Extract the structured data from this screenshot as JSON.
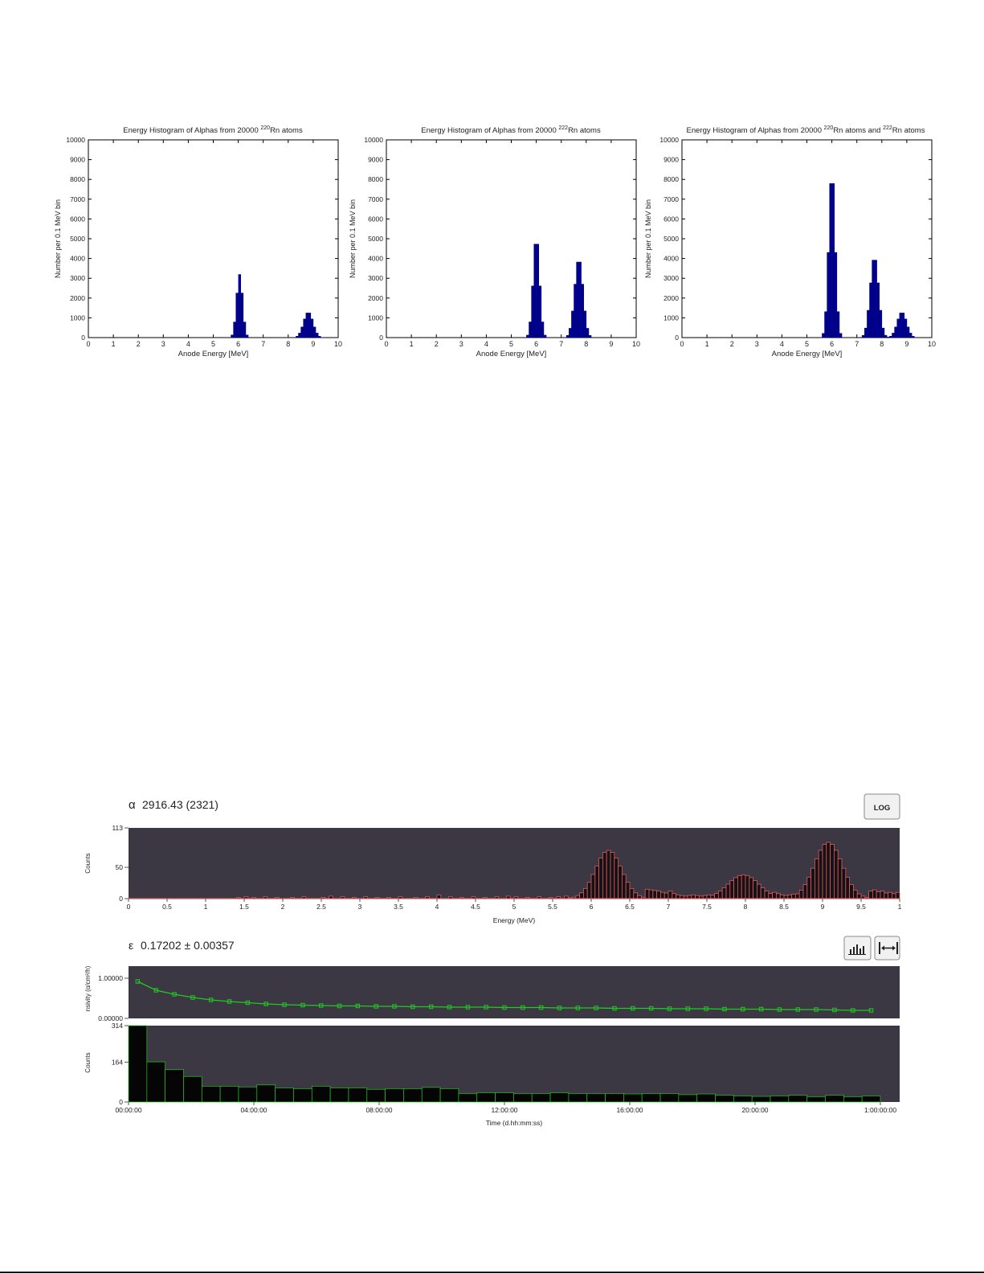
{
  "matlab": {
    "charts": [
      {
        "title_prefix": "Energy Histogram of Alphas from 20000 ",
        "iso_a": "220",
        "title_mid": "Rn atoms",
        "iso_b": "",
        "title_end": "",
        "peaks": [
          {
            "mu": 6.05,
            "sigma": 0.12,
            "peak": 3200
          },
          {
            "mu": 8.8,
            "sigma": 0.19,
            "peak": 1300
          }
        ]
      },
      {
        "title_prefix": "Energy Histogram of Alphas from 20000 ",
        "iso_a": "222",
        "title_mid": "Rn atoms",
        "iso_b": "",
        "title_end": "",
        "peaks": [
          {
            "mu": 6.0,
            "sigma": 0.13,
            "peak": 5100
          },
          {
            "mu": 7.7,
            "sigma": 0.17,
            "peak": 4000
          }
        ]
      },
      {
        "title_prefix": "Energy Histogram of Alphas from 20000 ",
        "iso_a": "220",
        "title_mid": "Rn atoms and ",
        "iso_b": "222",
        "title_end": "Rn atoms",
        "peaks": [
          {
            "mu": 6.0,
            "sigma": 0.13,
            "peak": 8400
          },
          {
            "mu": 7.7,
            "sigma": 0.17,
            "peak": 4100
          },
          {
            "mu": 8.8,
            "sigma": 0.19,
            "peak": 1300
          }
        ]
      }
    ],
    "xlabel": "Anode Energy [MeV]",
    "ylabel": "Number per 0.1 MeV bin",
    "x_ticks": [
      "0",
      "1",
      "2",
      "3",
      "4",
      "5",
      "6",
      "7",
      "8",
      "9",
      "10"
    ],
    "y_ticks": [
      "0",
      "1000",
      "2000",
      "3000",
      "4000",
      "5000",
      "6000",
      "7000",
      "8000",
      "9000",
      "10000"
    ]
  },
  "panel": {
    "alpha_symbol": "α",
    "alpha_value": "2916.43 (2321)",
    "log_button": "LOG",
    "energy_ylabel": "Counts",
    "energy_xlabel": "Energy (MeV)",
    "energy_y_ticks": [
      "0",
      "50",
      "113"
    ],
    "energy_x_ticks": [
      "0",
      "0.5",
      "1",
      "1.5",
      "2",
      "2.5",
      "3",
      "3.5",
      "4",
      "4.5",
      "5",
      "5.5",
      "6",
      "6.5",
      "7",
      "7.5",
      "8",
      "8.5",
      "9",
      "9.5",
      "1"
    ],
    "eps_symbol": "ε",
    "eps_value": "0.17202 ± 0.00357",
    "act_ylabel": "nsivity (α/cm²/h)",
    "act_y_ticks": [
      "0.00000",
      "1.00000"
    ],
    "counts_ylabel": "Counts",
    "counts_y_ticks": [
      "0",
      "164",
      "314"
    ],
    "time_x_ticks": [
      "00:00:00",
      "04:00:00",
      "08:00:00",
      "12:00:00",
      "16:00:00",
      "20:00:00",
      "1:00:00:00"
    ],
    "time_xlabel": "Time (d.hh:mm:ss)",
    "colors": {
      "plot_bg": "#3b3844",
      "energy_line": "#e05a5a",
      "green": "#22c922",
      "matlab_bar": "#00008b"
    }
  },
  "chart_data": [
    {
      "type": "bar",
      "title": "Energy Histogram of Alphas from 20000 220Rn atoms",
      "xlabel": "Anode Energy [MeV]",
      "ylabel": "Number per 0.1 MeV bin",
      "xlim": [
        0,
        10
      ],
      "ylim": [
        0,
        10000
      ],
      "bin_width": 0.1,
      "peaks": [
        {
          "center": 6.05,
          "max": 3200
        },
        {
          "center": 8.8,
          "max": 1300
        }
      ]
    },
    {
      "type": "bar",
      "title": "Energy Histogram of Alphas from 20000 222Rn atoms",
      "xlabel": "Anode Energy [MeV]",
      "ylabel": "Number per 0.1 MeV bin",
      "xlim": [
        0,
        10
      ],
      "ylim": [
        0,
        10000
      ],
      "bin_width": 0.1,
      "peaks": [
        {
          "center": 6.0,
          "max": 5100
        },
        {
          "center": 7.7,
          "max": 4000
        }
      ]
    },
    {
      "type": "bar",
      "title": "Energy Histogram of Alphas from 20000 220Rn atoms and 222Rn atoms",
      "xlabel": "Anode Energy [MeV]",
      "ylabel": "Number per 0.1 MeV bin",
      "xlim": [
        0,
        10
      ],
      "ylim": [
        0,
        10000
      ],
      "bin_width": 0.1,
      "peaks": [
        {
          "center": 6.0,
          "max": 8400
        },
        {
          "center": 7.7,
          "max": 4100
        },
        {
          "center": 8.8,
          "max": 1300
        }
      ]
    },
    {
      "type": "bar",
      "xlabel": "Energy (MeV)",
      "ylabel": "Counts",
      "xlim": [
        0,
        10
      ],
      "ylim": [
        0,
        113
      ],
      "bin_width": 0.05,
      "peaks": [
        {
          "center": 6.2,
          "max": 77
        },
        {
          "center": 7.95,
          "max": 38
        },
        {
          "center": 9.05,
          "max": 90
        }
      ],
      "background_bins": [
        {
          "x": 1.4,
          "v": 2
        },
        {
          "x": 1.5,
          "v": 3
        },
        {
          "x": 1.6,
          "v": 2
        },
        {
          "x": 1.75,
          "v": 3
        },
        {
          "x": 1.9,
          "v": 2
        },
        {
          "x": 2.1,
          "v": 2
        },
        {
          "x": 2.25,
          "v": 3
        },
        {
          "x": 2.5,
          "v": 2
        },
        {
          "x": 2.6,
          "v": 4
        },
        {
          "x": 2.75,
          "v": 3
        },
        {
          "x": 2.9,
          "v": 2
        },
        {
          "x": 3.05,
          "v": 3
        },
        {
          "x": 3.2,
          "v": 2
        },
        {
          "x": 3.35,
          "v": 2
        },
        {
          "x": 3.5,
          "v": 3
        },
        {
          "x": 3.7,
          "v": 2
        },
        {
          "x": 3.85,
          "v": 3
        },
        {
          "x": 4.0,
          "v": 6
        },
        {
          "x": 4.15,
          "v": 3
        },
        {
          "x": 4.3,
          "v": 2
        },
        {
          "x": 4.45,
          "v": 3
        },
        {
          "x": 4.6,
          "v": 2
        },
        {
          "x": 4.75,
          "v": 3
        },
        {
          "x": 4.9,
          "v": 4
        },
        {
          "x": 5.0,
          "v": 3
        },
        {
          "x": 5.15,
          "v": 2
        },
        {
          "x": 5.3,
          "v": 3
        },
        {
          "x": 5.45,
          "v": 2
        },
        {
          "x": 5.55,
          "v": 3
        },
        {
          "x": 5.65,
          "v": 4
        },
        {
          "x": 6.7,
          "v": 15
        },
        {
          "x": 6.75,
          "v": 14
        },
        {
          "x": 6.8,
          "v": 13
        },
        {
          "x": 6.85,
          "v": 12
        },
        {
          "x": 6.9,
          "v": 10
        },
        {
          "x": 6.95,
          "v": 9
        },
        {
          "x": 7.0,
          "v": 12
        },
        {
          "x": 7.05,
          "v": 8
        },
        {
          "x": 7.1,
          "v": 6
        },
        {
          "x": 7.15,
          "v": 5
        },
        {
          "x": 7.2,
          "v": 4
        },
        {
          "x": 7.25,
          "v": 5
        },
        {
          "x": 7.3,
          "v": 6
        },
        {
          "x": 7.35,
          "v": 5
        },
        {
          "x": 7.4,
          "v": 4
        },
        {
          "x": 7.45,
          "v": 5
        },
        {
          "x": 7.5,
          "v": 6
        },
        {
          "x": 7.55,
          "v": 5
        },
        {
          "x": 8.35,
          "v": 10
        },
        {
          "x": 8.4,
          "v": 8
        },
        {
          "x": 8.45,
          "v": 6
        },
        {
          "x": 8.5,
          "v": 5
        },
        {
          "x": 8.55,
          "v": 6
        },
        {
          "x": 8.6,
          "v": 7
        },
        {
          "x": 9.6,
          "v": 12
        },
        {
          "x": 9.65,
          "v": 14
        },
        {
          "x": 9.7,
          "v": 11
        },
        {
          "x": 9.75,
          "v": 12
        },
        {
          "x": 9.8,
          "v": 9
        },
        {
          "x": 9.85,
          "v": 10
        },
        {
          "x": 9.9,
          "v": 8
        },
        {
          "x": 9.95,
          "v": 10
        }
      ]
    },
    {
      "type": "line",
      "xlabel": "",
      "ylabel": "nsivity (α/cm²/h)",
      "ylim": [
        0,
        1.3
      ],
      "x_hours": [
        0.5,
        1.5,
        2.5,
        3.5,
        4.5,
        5.5,
        6.5,
        7.5,
        8.5,
        9.5,
        10.5,
        11.5,
        12.5,
        13.5,
        14.5,
        15.5,
        16.5,
        17.5,
        18.5,
        19.5,
        20.5,
        21.5,
        22.5,
        23.5,
        24.5,
        25.5,
        26.5,
        27.5,
        28.5,
        29.5,
        30.5,
        31.5,
        32.5,
        33.5,
        34.5,
        35.5,
        36.5,
        37.5,
        38.5,
        39.5,
        40.5
      ],
      "values": [
        0.92,
        0.7,
        0.6,
        0.52,
        0.46,
        0.42,
        0.39,
        0.36,
        0.34,
        0.33,
        0.32,
        0.31,
        0.31,
        0.3,
        0.3,
        0.29,
        0.29,
        0.28,
        0.28,
        0.28,
        0.27,
        0.27,
        0.27,
        0.26,
        0.26,
        0.26,
        0.25,
        0.25,
        0.25,
        0.24,
        0.24,
        0.24,
        0.23,
        0.23,
        0.23,
        0.22,
        0.22,
        0.22,
        0.21,
        0.2,
        0.2
      ]
    },
    {
      "type": "bar",
      "xlabel": "Time (d.hh:mm:ss)",
      "ylabel": "Counts",
      "ylim": [
        0,
        314
      ],
      "bin_hours": 1,
      "values": [
        314,
        165,
        133,
        105,
        65,
        65,
        62,
        70,
        58,
        55,
        65,
        58,
        58,
        52,
        55,
        55,
        60,
        55,
        35,
        38,
        38,
        35,
        35,
        38,
        35,
        35,
        35,
        33,
        35,
        35,
        30,
        33,
        28,
        25,
        23,
        25,
        28,
        22,
        28,
        22,
        25
      ]
    }
  ]
}
